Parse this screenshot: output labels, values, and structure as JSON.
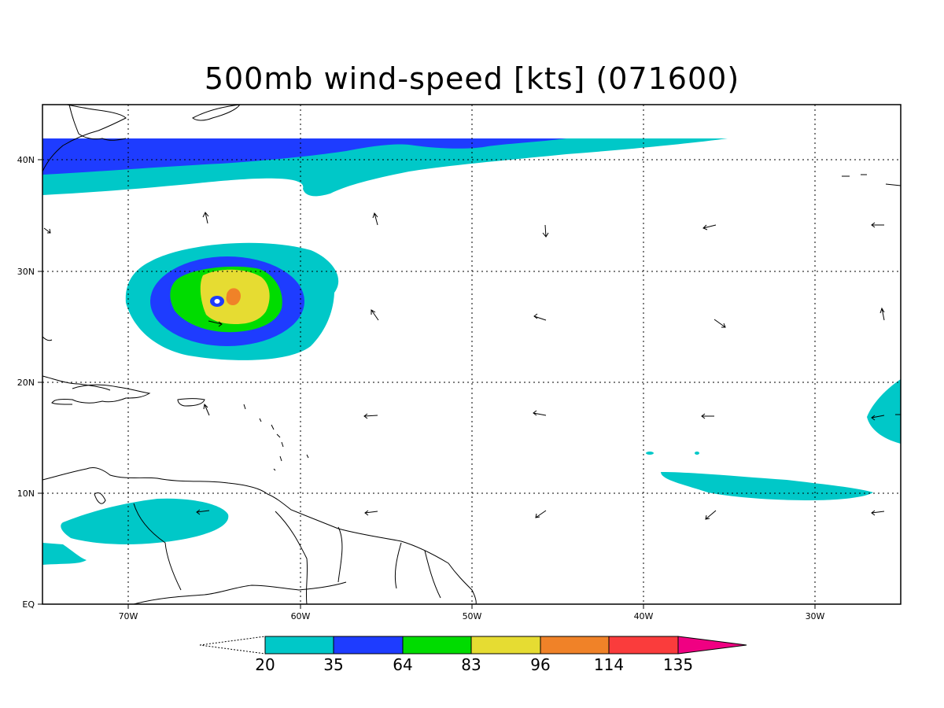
{
  "title": "500mb wind-speed [kts] (071600)",
  "axes": {
    "x_ticks": [
      "70W",
      "60W",
      "50W",
      "40W",
      "30W"
    ],
    "y_ticks": [
      "40N",
      "30N",
      "20N",
      "10N",
      "EQ"
    ]
  },
  "colorbar": {
    "labels": [
      "20",
      "35",
      "64",
      "83",
      "96",
      "114",
      "135"
    ],
    "colors": [
      "#00c8c8",
      "#1e3cff",
      "#00dc00",
      "#e6dc32",
      "#f08228",
      "#fa3c3c",
      "#f00082"
    ]
  },
  "colors": {
    "land_outline": "#000000",
    "grid": "#000000"
  }
}
